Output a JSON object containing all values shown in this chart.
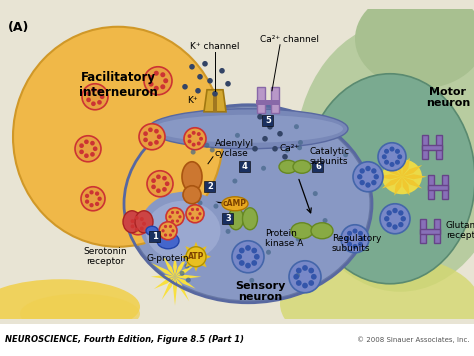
{
  "title_label": "(A)",
  "footer_left": "NEUROSCIENCE, Fourth Edition, Figure 8.5 (Part 1)",
  "footer_right": "© 2008 Sinauer Associates, Inc.",
  "labels": {
    "facilitatory_interneuron": "Facilitatory\ninterneuron",
    "motor_neuron": "Motor\nneuron",
    "sensory_neuron": "Sensory\nneuron",
    "adenylyl_cyclase": "Adenylyl\ncyclase",
    "serotonin_receptor": "Serotonin\nreceptor",
    "g_protein": "G-protein",
    "protein_kinase_a": "Protein\nkinase A",
    "catalytic_subunits": "Catalytic\nsubunits",
    "regulatory_subunits": "Regulatory\nsubunits",
    "glutamate_receptor": "Glutamate\nreceptor",
    "k_channel": "K⁺ channel",
    "ca_channel": "Ca²⁺ channel",
    "k_ions": "K⁺",
    "ca_ions": "Ca²⁺",
    "camp": "cAMP",
    "atp": "ATP"
  },
  "colors": {
    "background": "#e8e4d4",
    "facilitatory_fill": "#f0b84a",
    "facilitatory_edge": "#d09830",
    "sensory_fill": "#8898c8",
    "sensory_edge": "#6678a8",
    "motor_fill": "#8ab8a0",
    "motor_edge": "#6a9880",
    "motor_bg_fill": "#c8d8b0",
    "synapse_membrane": "#7888b8",
    "k_channel_fill": "#d4a830",
    "k_channel_edge": "#a07810",
    "ca_channel_fill": "#b898c8",
    "ca_channel_edge": "#8868a8",
    "adenylyl_fill": "#cc7730",
    "adenylyl_edge": "#aa5510",
    "serotonin_fill": "#cc4444",
    "serotonin_edge": "#aa2222",
    "sr_blue": "#4466cc",
    "gprotein_fill": "#4466cc",
    "gprotein_edge": "#2244aa",
    "pk_fill": "#88aa44",
    "pk_edge": "#668822",
    "rs_fill": "#88aa44",
    "rs_edge": "#668822",
    "cs_fill": "#88aa44",
    "cs_edge": "#668822",
    "vesicle_bg": "#e8a040",
    "vesicle_ring": "#cc3333",
    "vesicle_dot": "#cc3333",
    "sv_bg": "#7888c8",
    "sv_ring": "#4466aa",
    "sv_dot": "#3355aa",
    "glu_fill": "#8870b8",
    "glu_edge": "#664488",
    "camp_fill": "#e8a820",
    "camp_edge": "#b07800",
    "atp_fill": "#e8c020",
    "atp_edge": "#b09000",
    "num_fill": "#1a3060",
    "num_text": "#ffffff",
    "ion_color": "#334466",
    "yellow_glow": "#f0d050",
    "synapse_glow": "#f0d878",
    "footer_bg": "#ffffff",
    "white": "#ffffff"
  },
  "figsize": [
    4.74,
    3.56
  ],
  "dpi": 100
}
